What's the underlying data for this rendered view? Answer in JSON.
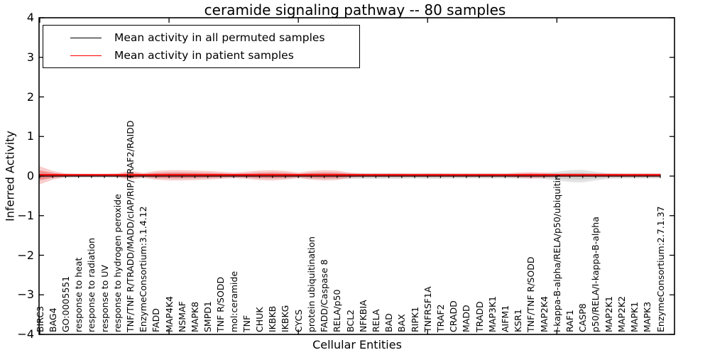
{
  "title": "ceramide signaling pathway -- 80 samples",
  "axes": {
    "ylabel": "Inferred Activity",
    "xlabel": "Cellular Entities",
    "yticks": [
      "4",
      "3",
      "2",
      "1",
      "0",
      "−1",
      "−2",
      "−3",
      "−4"
    ]
  },
  "legend": {
    "items": [
      {
        "label": "Mean activity in all permuted samples",
        "color": "#000000"
      },
      {
        "label": "Mean activity in patient samples",
        "color": "#ff0000"
      }
    ]
  },
  "colors": {
    "patient_line": "#ff0000",
    "permuted_line": "#000000",
    "patient_band": "#e74c4c",
    "permuted_band": "#999999",
    "frame": "#000000"
  },
  "chart_data": {
    "type": "line",
    "title": "ceramide signaling pathway -- 80 samples",
    "xlabel": "Cellular Entities",
    "ylabel": "Inferred Activity",
    "ylim": [
      -4,
      4
    ],
    "grid": false,
    "legend_position": "upper left",
    "categories": [
      "BIRC3",
      "BAG4",
      "GO:0005551",
      "response to heat",
      "response to radiation",
      "response to UV",
      "response to hydrogen peroxide",
      "TNF/TNF R/TRADD/MADD/cIAP/RIP/TRAF2/RAIDD",
      "EnzymeConsortium:3.1.4.12",
      "FADD",
      "MAP4K4",
      "NSMAF",
      "MAPK8",
      "SMPD1",
      "TNF R/SODD",
      "mol:ceramide",
      "TNF",
      "CHUK",
      "IKBKB",
      "IKBKG",
      "CYCS",
      "protein ubiquitination",
      "FADD/Caspase 8",
      "RELA/p50",
      "BCL2",
      "NFKBIA",
      "RELA",
      "BAD",
      "BAX",
      "RIPK1",
      "TNFRSF1A",
      "TRAF2",
      "CRADD",
      "MADD",
      "TRADD",
      "MAP3K1",
      "AIFM1",
      "KSR1",
      "TNF/TNF R/SODD",
      "MAP2K4",
      "I-kappa-B-alpha/RELA/p50/ubiquitin",
      "RAF1",
      "CASP8",
      "p50/RELA/I-kappa-B-alpha",
      "MAP2K1",
      "MAP2K2",
      "MAPK1",
      "MAPK3",
      "EnzymeConsortium:2.7.1.37"
    ],
    "series": [
      {
        "name": "Mean activity in all permuted samples",
        "color": "#000000",
        "mean": 0.0,
        "spread": [
          0.07,
          0.05,
          0.04,
          0.04,
          0.04,
          0.04,
          0.04,
          0.05,
          0.05,
          0.06,
          0.06,
          0.06,
          0.06,
          0.05,
          0.05,
          0.05,
          0.05,
          0.06,
          0.06,
          0.06,
          0.05,
          0.07,
          0.07,
          0.07,
          0.07,
          0.07,
          0.07,
          0.07,
          0.07,
          0.06,
          0.07,
          0.07,
          0.06,
          0.06,
          0.06,
          0.06,
          0.06,
          0.06,
          0.06,
          0.07,
          0.11,
          0.15,
          0.16,
          0.11,
          0.07,
          0.06,
          0.06,
          0.06,
          0.06
        ]
      },
      {
        "name": "Mean activity in patient samples",
        "color": "#ff0000",
        "mean": 0.02,
        "spread": [
          0.23,
          0.11,
          0.05,
          0.04,
          0.04,
          0.04,
          0.05,
          0.11,
          0.06,
          0.11,
          0.13,
          0.13,
          0.12,
          0.11,
          0.09,
          0.07,
          0.09,
          0.12,
          0.13,
          0.11,
          0.07,
          0.11,
          0.13,
          0.12,
          0.07,
          0.05,
          0.05,
          0.05,
          0.05,
          0.05,
          0.05,
          0.05,
          0.05,
          0.05,
          0.05,
          0.05,
          0.05,
          0.07,
          0.08,
          0.07,
          0.05,
          0.05,
          0.05,
          0.05,
          0.05,
          0.05,
          0.05,
          0.05,
          0.05
        ]
      }
    ]
  }
}
